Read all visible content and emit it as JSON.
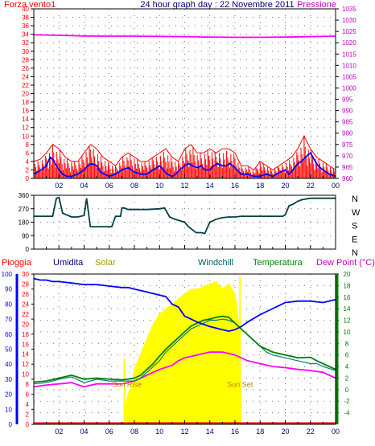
{
  "chart_data": [
    {
      "type": "line",
      "title": "24 hour graph day : 22 Novembre 2011",
      "left_label": "Forza vento1",
      "right_label": "Pressione",
      "left_axis": {
        "min": 0,
        "max": 40,
        "ticks": [
          0,
          2,
          4,
          6,
          8,
          10,
          12,
          14,
          16,
          18,
          20,
          22,
          24,
          26,
          28,
          30,
          32,
          34,
          36,
          38,
          40
        ]
      },
      "right_axis": {
        "min": 960,
        "max": 1035,
        "ticks": [
          960,
          965,
          970,
          975,
          980,
          985,
          990,
          995,
          1000,
          1005,
          1010,
          1015,
          1020,
          1025,
          1030,
          1035
        ]
      },
      "x_range": [
        0,
        24
      ],
      "x_ticks": [
        "02",
        "04",
        "06",
        "08",
        "10",
        "12",
        "14",
        "16",
        "18",
        "20",
        "22",
        "00"
      ],
      "grid": "dotted",
      "colors": {
        "wind_gust": "#ff0000",
        "wind_avg": "#0000ff",
        "pressure": "#ff00ff"
      },
      "series": [
        {
          "key": "pressure",
          "axis": "right",
          "x": [
            0,
            2,
            4,
            6,
            8,
            10,
            12,
            14,
            16,
            18,
            20,
            22,
            24
          ],
          "y": [
            1023.5,
            1023.3,
            1023,
            1022.9,
            1022.9,
            1022.8,
            1022.7,
            1022.5,
            1022.4,
            1022.4,
            1022.5,
            1022.7,
            1022.9
          ]
        },
        {
          "key": "wind_avg",
          "axis": "left",
          "x": [
            0,
            0.3,
            0.6,
            1,
            1.3,
            1.5,
            1.8,
            2,
            2.3,
            2.6,
            3,
            3.5,
            4,
            4.3,
            4.6,
            5,
            5.3,
            5.6,
            6,
            6.5,
            7,
            7.5,
            8,
            8.5,
            9,
            9.5,
            10,
            10.3,
            10.6,
            11,
            11.3,
            11.6,
            12,
            12.3,
            12.6,
            13,
            13.3,
            13.6,
            14,
            14.3,
            14.6,
            15,
            15.3,
            15.6,
            16,
            16.5,
            17,
            17.5,
            18,
            18.5,
            19,
            19.3,
            19.6,
            20,
            20.3,
            20.6,
            21,
            21.3,
            21.6,
            22,
            22.3,
            22.6,
            23,
            23.5,
            24
          ],
          "y": [
            1,
            1.5,
            2,
            3,
            5,
            4.5,
            3,
            2,
            1,
            0.5,
            0.5,
            1,
            2,
            3,
            3.5,
            3,
            1.5,
            1,
            0.5,
            1,
            2,
            2.5,
            1.5,
            1,
            1,
            2,
            3,
            2,
            1,
            0.5,
            1,
            2,
            3,
            3.5,
            3,
            2.5,
            3,
            2,
            2,
            3,
            3.5,
            3,
            3,
            3.5,
            2.5,
            1,
            1,
            0.5,
            0.5,
            1,
            0.5,
            1,
            1.5,
            2,
            1,
            2,
            3.5,
            4,
            5,
            6,
            4.5,
            3,
            2,
            1,
            0.5
          ]
        },
        {
          "key": "wind_gust",
          "axis": "left",
          "x": [
            0,
            0.5,
            1,
            1.5,
            2,
            2.5,
            3,
            3.5,
            4,
            4.5,
            5,
            5.5,
            6,
            6.5,
            7,
            7.5,
            8,
            8.5,
            9,
            9.5,
            10,
            10.5,
            11,
            11.5,
            12,
            12.5,
            13,
            13.5,
            14,
            14.5,
            15,
            15.5,
            16,
            16.5,
            17,
            17.5,
            18,
            18.5,
            19,
            19.5,
            20,
            20.5,
            21,
            21.5,
            22,
            22.5,
            23,
            23.5,
            24
          ],
          "y": [
            4,
            4.5,
            6,
            8,
            7,
            5,
            4,
            4,
            6,
            8,
            7,
            5,
            4,
            3,
            5,
            6,
            5,
            4,
            4,
            5,
            6,
            7,
            5,
            4,
            7,
            8,
            6,
            6,
            7,
            6,
            7,
            7,
            6,
            3,
            3,
            2,
            4,
            3,
            2,
            3,
            4,
            5,
            7,
            10,
            7,
            5,
            4,
            3,
            2
          ]
        }
      ]
    },
    {
      "type": "line",
      "title": "",
      "left_axis": {
        "min": 0,
        "max": 360,
        "ticks": [
          0,
          90,
          180,
          270,
          360
        ]
      },
      "right_labels": [
        "N",
        "W",
        "S",
        "E",
        "N"
      ],
      "x_range": [
        0,
        24
      ],
      "grid": "dotted",
      "colors": {
        "direction": "#004040"
      },
      "series": [
        {
          "key": "wind_direction",
          "x": [
            0,
            0.3,
            1.5,
            1.8,
            2,
            2.3,
            3,
            3.5,
            4,
            4.2,
            4.5,
            4.8,
            6,
            6.2,
            6.5,
            6.9,
            7,
            7.2,
            7.5,
            8,
            9,
            10,
            10.4,
            10.8,
            11.2,
            11.6,
            12,
            12.3,
            12.6,
            12.9,
            13.3,
            13.6,
            14,
            14.5,
            15,
            15.5,
            16,
            16.5,
            17,
            18,
            19,
            19.8,
            20,
            20.3,
            20.6,
            21,
            21.3,
            21.6,
            22,
            22.5,
            23,
            24
          ],
          "y": [
            220,
            220,
            220,
            340,
            345,
            240,
            215,
            215,
            225,
            340,
            150,
            150,
            150,
            150,
            220,
            220,
            275,
            275,
            265,
            265,
            265,
            270,
            275,
            215,
            200,
            190,
            180,
            150,
            130,
            110,
            110,
            105,
            180,
            200,
            210,
            215,
            215,
            220,
            220,
            220,
            220,
            220,
            230,
            290,
            300,
            320,
            330,
            335,
            340,
            340,
            340,
            340
          ]
        }
      ]
    },
    {
      "type": "line",
      "title": "",
      "header_labels": {
        "rain": "Pioggia",
        "humidity": "Umidita",
        "solar": "Solar",
        "windchill": "Windchill",
        "temperature": "Temperatura",
        "dewpoint": "Dew Point (°C)"
      },
      "left_axis_rain": {
        "min": 0,
        "max": 30,
        "ticks": [
          0,
          2,
          4,
          6,
          8,
          10,
          12,
          14,
          16,
          18,
          20,
          22,
          24,
          26,
          28,
          30
        ]
      },
      "left_axis_humidity": {
        "min": 0,
        "max": 100,
        "ticks": [
          0,
          10,
          20,
          30,
          40,
          50,
          60,
          70,
          80,
          90,
          100
        ]
      },
      "right_axis": {
        "min": -6,
        "max": 20,
        "ticks": [
          -4,
          -2,
          0,
          2,
          4,
          6,
          8,
          10,
          12,
          14,
          16,
          18,
          20
        ]
      },
      "x_range": [
        0,
        24
      ],
      "x_ticks": [
        "02",
        "04",
        "06",
        "08",
        "10",
        "12",
        "14",
        "16",
        "18",
        "20",
        "22",
        "00"
      ],
      "grid": "dotted",
      "annotations": [
        {
          "text": "Sun Rise",
          "x": 7.4
        },
        {
          "text": "Sun Set",
          "x": 16.4
        }
      ],
      "colors": {
        "rain": "#ff0000",
        "humidity": "#0000ff",
        "solar": "#ffff00",
        "windchill": "#008080",
        "temperature": "#008000",
        "dewpoint": "#ff00ff",
        "sun_text": "#c08000"
      },
      "series": [
        {
          "key": "humidity",
          "axis": "humidity",
          "x": [
            0,
            0.5,
            1,
            1.5,
            2,
            3,
            4,
            5,
            6,
            7,
            7.5,
            8,
            9,
            10,
            10.5,
            11,
            11.5,
            12,
            12.5,
            13,
            14,
            15,
            15.5,
            16,
            16.5,
            17,
            18,
            19,
            19.5,
            20,
            21,
            22,
            23,
            24
          ],
          "y": [
            97,
            96,
            96,
            95,
            95,
            94,
            93,
            93,
            92,
            91,
            91,
            90,
            88,
            86,
            85,
            80,
            78,
            72,
            70,
            68,
            65,
            63,
            62,
            63,
            65,
            68,
            73,
            77,
            79,
            81,
            82,
            82,
            81,
            83
          ]
        },
        {
          "key": "temperature",
          "axis": "temp",
          "x": [
            0,
            1,
            2,
            3,
            4,
            5,
            6,
            7,
            7.5,
            8,
            8.5,
            9,
            9.5,
            10,
            10.5,
            11,
            11.5,
            12,
            12.5,
            13,
            13.5,
            14,
            14.5,
            15,
            15.5,
            16,
            16.5,
            17,
            17.5,
            18,
            18.5,
            19,
            20,
            21,
            22,
            22.5,
            23,
            24
          ],
          "y": [
            1.3,
            1.5,
            2,
            2.5,
            1.8,
            2,
            1.8,
            1.7,
            1.8,
            2,
            2.5,
            3.5,
            4.5,
            5.8,
            7,
            8,
            9,
            10,
            11,
            11.5,
            12,
            12.2,
            12.5,
            12.7,
            12.5,
            11.5,
            10.5,
            9.5,
            8.5,
            7.5,
            7,
            6.5,
            6,
            5.5,
            5.6,
            5,
            4.5,
            3.5
          ]
        },
        {
          "key": "windchill",
          "axis": "temp",
          "x": [
            0,
            1,
            2,
            3,
            4,
            5,
            6,
            7,
            7.5,
            8,
            8.5,
            9,
            9.5,
            10,
            10.5,
            11,
            11.5,
            12,
            12.5,
            13,
            13.5,
            14,
            14.5,
            15,
            15.5,
            16,
            16.5,
            17,
            17.5,
            18,
            18.5,
            19,
            20,
            21,
            22,
            22.5,
            23,
            24
          ],
          "y": [
            1,
            1.2,
            1.8,
            2.2,
            1.2,
            1.8,
            1.5,
            1.5,
            1.5,
            1.5,
            2,
            3,
            4,
            5,
            6.5,
            7.5,
            8.5,
            9.5,
            10.5,
            11,
            11.5,
            12,
            12,
            12.2,
            12,
            11.5,
            10.5,
            9.5,
            8.5,
            7.5,
            6.5,
            6,
            5.5,
            5,
            4.5,
            4.5,
            4,
            3.3
          ]
        },
        {
          "key": "dewpoint",
          "axis": "temp",
          "x": [
            0,
            1,
            2,
            3,
            4,
            5,
            6,
            7,
            7.5,
            8,
            8.5,
            9,
            9.5,
            10,
            11,
            11.5,
            12,
            13,
            14,
            15,
            16,
            16.5,
            17,
            18,
            19,
            20,
            21,
            22,
            23,
            24
          ],
          "y": [
            0.5,
            0.8,
            1,
            1.2,
            0.5,
            1,
            1,
            1,
            1.2,
            1.5,
            2,
            2.5,
            3,
            3.5,
            4.2,
            5,
            5.5,
            6,
            6.5,
            6.5,
            6,
            5.5,
            5,
            4.5,
            4,
            3.8,
            3.5,
            3.3,
            3,
            2
          ]
        },
        {
          "key": "solar",
          "axis": "solar",
          "x": [
            7.3,
            7.5,
            7.8,
            8,
            8.5,
            9,
            9.5,
            10,
            10.5,
            11,
            11.5,
            12,
            12.5,
            13,
            13.5,
            14,
            14.5,
            15,
            15.5,
            16,
            16.3,
            16.5
          ],
          "y": [
            4,
            6,
            8,
            11,
            14,
            17,
            20,
            22,
            23,
            24,
            25,
            26,
            27,
            27,
            27.5,
            28,
            28.5,
            27,
            28,
            26,
            20,
            5
          ]
        },
        {
          "key": "rain",
          "axis": "rain",
          "x": [
            0,
            24
          ],
          "y": [
            0.2,
            0.2
          ]
        }
      ]
    }
  ]
}
